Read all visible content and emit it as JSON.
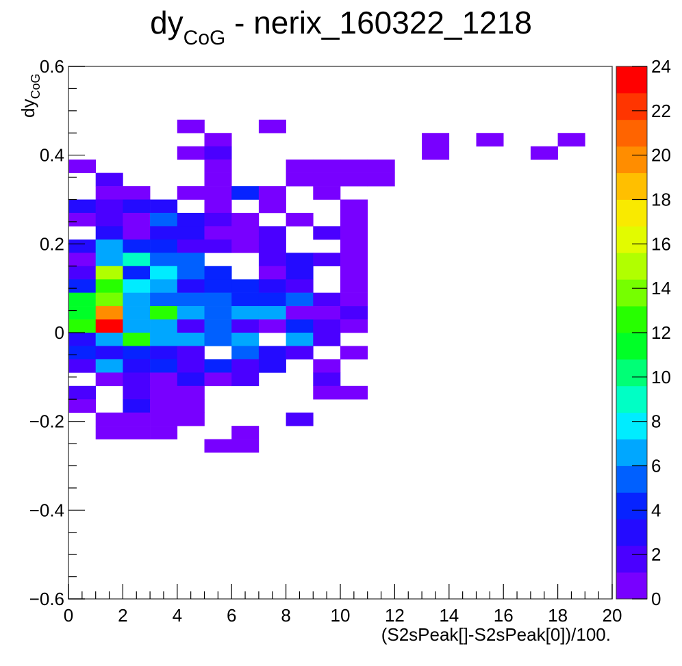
{
  "chart_data": {
    "type": "heatmap",
    "title": {
      "main": "dy",
      "sub": "CoG",
      "rest": " - nerix_160322_1218"
    },
    "xlabel": "(S2sPeak[]-S2sPeak[0])/100.",
    "ylabel": {
      "main": "dy",
      "sub": "CoG"
    },
    "xlim": [
      0,
      20
    ],
    "ylim": [
      -0.6,
      0.6
    ],
    "x_ticks": [
      "0",
      "2",
      "4",
      "6",
      "8",
      "10",
      "12",
      "14",
      "16",
      "18",
      "20"
    ],
    "y_ticks": [
      "−0.6",
      "−0.4",
      "−0.2",
      "0",
      "0.2",
      "0.4",
      "0.6"
    ],
    "colorbar": {
      "min": 0,
      "max": 24,
      "ticks": [
        "0",
        "2",
        "4",
        "6",
        "8",
        "10",
        "12",
        "14",
        "16",
        "18",
        "20",
        "22",
        "24"
      ]
    },
    "x_bin_width": 1,
    "y_bin_width": 0.03,
    "cells": [
      [
        4,
        0.45,
        1
      ],
      [
        7,
        0.45,
        1
      ],
      [
        5,
        0.42,
        1
      ],
      [
        13,
        0.42,
        1
      ],
      [
        15,
        0.42,
        1
      ],
      [
        18,
        0.42,
        1
      ],
      [
        4,
        0.39,
        1
      ],
      [
        5,
        0.39,
        2
      ],
      [
        13,
        0.39,
        1
      ],
      [
        17,
        0.39,
        1
      ],
      [
        0,
        0.36,
        1
      ],
      [
        5,
        0.36,
        1
      ],
      [
        8,
        0.36,
        1
      ],
      [
        9,
        0.36,
        1
      ],
      [
        10,
        0.36,
        1
      ],
      [
        11,
        0.36,
        1
      ],
      [
        1,
        0.33,
        2
      ],
      [
        5,
        0.33,
        1
      ],
      [
        8,
        0.33,
        1
      ],
      [
        9,
        0.33,
        1
      ],
      [
        10,
        0.33,
        1
      ],
      [
        11,
        0.33,
        1
      ],
      [
        1,
        0.3,
        1
      ],
      [
        2,
        0.3,
        1
      ],
      [
        4,
        0.3,
        1
      ],
      [
        5,
        0.3,
        1
      ],
      [
        6,
        0.3,
        4
      ],
      [
        7,
        0.3,
        1
      ],
      [
        9,
        0.3,
        1
      ],
      [
        0,
        0.27,
        3
      ],
      [
        1,
        0.27,
        2
      ],
      [
        2,
        0.27,
        3
      ],
      [
        3,
        0.27,
        3
      ],
      [
        5,
        0.27,
        1
      ],
      [
        7,
        0.27,
        1
      ],
      [
        10,
        0.27,
        1
      ],
      [
        0,
        0.24,
        1
      ],
      [
        1,
        0.24,
        2
      ],
      [
        2,
        0.24,
        1
      ],
      [
        3,
        0.24,
        5
      ],
      [
        4,
        0.24,
        3
      ],
      [
        5,
        0.24,
        2
      ],
      [
        6,
        0.24,
        1
      ],
      [
        8,
        0.24,
        1
      ],
      [
        10,
        0.24,
        1
      ],
      [
        1,
        0.21,
        3
      ],
      [
        2,
        0.21,
        1
      ],
      [
        3,
        0.21,
        3
      ],
      [
        4,
        0.21,
        3
      ],
      [
        5,
        0.21,
        1
      ],
      [
        6,
        0.21,
        1
      ],
      [
        7,
        0.21,
        2
      ],
      [
        9,
        0.21,
        2
      ],
      [
        10,
        0.21,
        1
      ],
      [
        0,
        0.18,
        3
      ],
      [
        1,
        0.18,
        6
      ],
      [
        2,
        0.18,
        4
      ],
      [
        3,
        0.18,
        4
      ],
      [
        4,
        0.18,
        2
      ],
      [
        5,
        0.18,
        2
      ],
      [
        6,
        0.18,
        1
      ],
      [
        7,
        0.18,
        2
      ],
      [
        10,
        0.18,
        1
      ],
      [
        0,
        0.15,
        1
      ],
      [
        1,
        0.15,
        7
      ],
      [
        2,
        0.15,
        9
      ],
      [
        3,
        0.15,
        5
      ],
      [
        4,
        0.15,
        5
      ],
      [
        7,
        0.15,
        2
      ],
      [
        8,
        0.15,
        3
      ],
      [
        9,
        0.15,
        2
      ],
      [
        10,
        0.15,
        1
      ],
      [
        0,
        0.12,
        2
      ],
      [
        1,
        0.12,
        15
      ],
      [
        2,
        0.12,
        4
      ],
      [
        3,
        0.12,
        8
      ],
      [
        4,
        0.12,
        5
      ],
      [
        5,
        0.12,
        4
      ],
      [
        7,
        0.12,
        1
      ],
      [
        8,
        0.12,
        3
      ],
      [
        10,
        0.12,
        1
      ],
      [
        0,
        0.09,
        4
      ],
      [
        1,
        0.09,
        13
      ],
      [
        2,
        0.09,
        8
      ],
      [
        3,
        0.09,
        6
      ],
      [
        4,
        0.09,
        3
      ],
      [
        5,
        0.09,
        4
      ],
      [
        6,
        0.09,
        4
      ],
      [
        7,
        0.09,
        3
      ],
      [
        8,
        0.09,
        2
      ],
      [
        10,
        0.09,
        1
      ],
      [
        0,
        0.06,
        11
      ],
      [
        1,
        0.06,
        14
      ],
      [
        2,
        0.06,
        7
      ],
      [
        3,
        0.06,
        5
      ],
      [
        4,
        0.06,
        5
      ],
      [
        5,
        0.06,
        5
      ],
      [
        6,
        0.06,
        4
      ],
      [
        7,
        0.06,
        4
      ],
      [
        8,
        0.06,
        5
      ],
      [
        9,
        0.06,
        2
      ],
      [
        10,
        0.06,
        1
      ],
      [
        0,
        0.03,
        11
      ],
      [
        1,
        0.03,
        20
      ],
      [
        2,
        0.03,
        7
      ],
      [
        3,
        0.03,
        13
      ],
      [
        4,
        0.03,
        7
      ],
      [
        5,
        0.03,
        5
      ],
      [
        6,
        0.03,
        7
      ],
      [
        7,
        0.03,
        7
      ],
      [
        8,
        0.03,
        1
      ],
      [
        9,
        0.03,
        1
      ],
      [
        10,
        0.03,
        2
      ],
      [
        0,
        0.0,
        13
      ],
      [
        1,
        0.0,
        24
      ],
      [
        2,
        0.0,
        7
      ],
      [
        3,
        0.0,
        7
      ],
      [
        4,
        0.0,
        2
      ],
      [
        5,
        0.0,
        5
      ],
      [
        6,
        0.0,
        2
      ],
      [
        7,
        0.0,
        1
      ],
      [
        8,
        0.0,
        4
      ],
      [
        9,
        0.0,
        2
      ],
      [
        10,
        0.0,
        1
      ],
      [
        0,
        -0.03,
        3
      ],
      [
        1,
        -0.03,
        6
      ],
      [
        2,
        -0.03,
        13
      ],
      [
        3,
        -0.03,
        7
      ],
      [
        4,
        -0.03,
        7
      ],
      [
        5,
        -0.03,
        5
      ],
      [
        6,
        -0.03,
        6
      ],
      [
        8,
        -0.03,
        6
      ],
      [
        9,
        -0.03,
        2
      ],
      [
        0,
        -0.06,
        4
      ],
      [
        1,
        -0.06,
        3
      ],
      [
        2,
        -0.06,
        4
      ],
      [
        3,
        -0.06,
        3
      ],
      [
        4,
        -0.06,
        2
      ],
      [
        6,
        -0.06,
        5
      ],
      [
        7,
        -0.06,
        3
      ],
      [
        8,
        -0.06,
        2
      ],
      [
        10,
        -0.06,
        1
      ],
      [
        0,
        -0.09,
        2
      ],
      [
        1,
        -0.09,
        6
      ],
      [
        2,
        -0.09,
        3
      ],
      [
        3,
        -0.09,
        4
      ],
      [
        4,
        -0.09,
        2
      ],
      [
        5,
        -0.09,
        4
      ],
      [
        6,
        -0.09,
        2
      ],
      [
        7,
        -0.09,
        3
      ],
      [
        9,
        -0.09,
        1
      ],
      [
        1,
        -0.12,
        1
      ],
      [
        2,
        -0.12,
        2
      ],
      [
        3,
        -0.12,
        1
      ],
      [
        4,
        -0.12,
        3
      ],
      [
        5,
        -0.12,
        1
      ],
      [
        6,
        -0.12,
        2
      ],
      [
        9,
        -0.12,
        2
      ],
      [
        0,
        -0.15,
        2
      ],
      [
        2,
        -0.15,
        2
      ],
      [
        3,
        -0.15,
        1
      ],
      [
        4,
        -0.15,
        1
      ],
      [
        9,
        -0.15,
        1
      ],
      [
        10,
        -0.15,
        1
      ],
      [
        0,
        -0.18,
        1
      ],
      [
        2,
        -0.18,
        3
      ],
      [
        3,
        -0.18,
        1
      ],
      [
        4,
        -0.18,
        1
      ],
      [
        1,
        -0.21,
        1
      ],
      [
        2,
        -0.21,
        1
      ],
      [
        3,
        -0.21,
        1
      ],
      [
        4,
        -0.21,
        1
      ],
      [
        8,
        -0.21,
        2
      ],
      [
        1,
        -0.24,
        1
      ],
      [
        2,
        -0.24,
        1
      ],
      [
        3,
        -0.24,
        1
      ],
      [
        6,
        -0.24,
        1
      ],
      [
        5,
        -0.27,
        1
      ],
      [
        6,
        -0.27,
        1
      ]
    ],
    "grid": false
  }
}
